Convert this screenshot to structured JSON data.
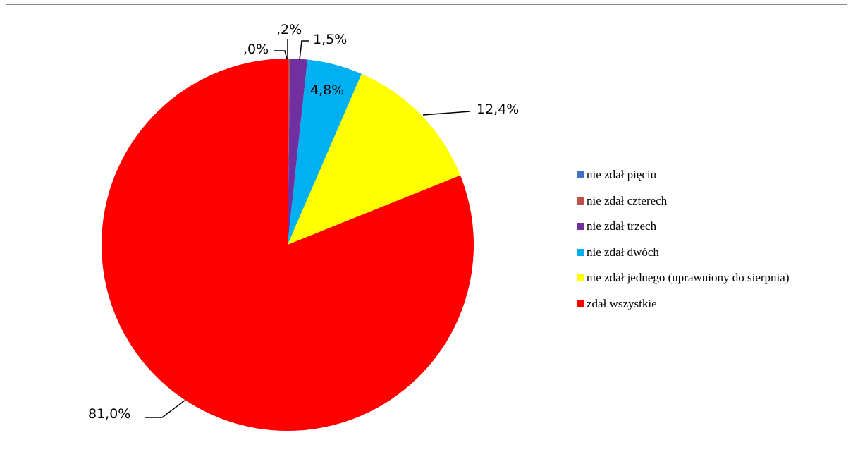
{
  "chart_data": {
    "type": "pie",
    "title": "",
    "slices": [
      {
        "label": "nie zdał pięciu",
        "value": 0.0,
        "value_label": ",0%",
        "color": "#4472C4"
      },
      {
        "label": "nie zdał czterech",
        "value": 0.2,
        "value_label": ",2%",
        "color": "#C0504D"
      },
      {
        "label": "nie zdał trzech",
        "value": 1.5,
        "value_label": "1,5%",
        "color": "#7030A0"
      },
      {
        "label": "nie zdał dwóch",
        "value": 4.8,
        "value_label": "4,8%",
        "color": "#00B0F0"
      },
      {
        "label": "nie zdał jednego (uprawniony do sierpnia)",
        "value": 12.4,
        "value_label": "12,4%",
        "color": "#FFFF00"
      },
      {
        "label": "zdał wszystkie",
        "value": 81.0,
        "value_label": "81,0%",
        "color": "#FF0000"
      }
    ],
    "legend_position": "right",
    "start_angle": "top, clockwise"
  }
}
